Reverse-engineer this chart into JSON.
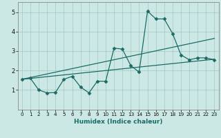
{
  "title": "",
  "xlabel": "Humidex (Indice chaleur)",
  "ylabel": "",
  "xlim": [
    -0.5,
    23.5
  ],
  "ylim": [
    0.0,
    5.5
  ],
  "xticks": [
    0,
    1,
    2,
    3,
    4,
    5,
    6,
    7,
    8,
    9,
    10,
    11,
    12,
    13,
    14,
    15,
    16,
    17,
    18,
    19,
    20,
    21,
    22,
    23
  ],
  "yticks": [
    1,
    2,
    3,
    4,
    5
  ],
  "bg_color": "#cce8e4",
  "grid_color": "#aaccca",
  "line_color": "#1a6b65",
  "line1_x": [
    0,
    1,
    2,
    3,
    4,
    5,
    6,
    7,
    8,
    9,
    10,
    11,
    12,
    13,
    14,
    15,
    16,
    17,
    18,
    19,
    20,
    21,
    22,
    23
  ],
  "line1_y": [
    1.55,
    1.6,
    1.0,
    0.85,
    0.87,
    1.55,
    1.7,
    1.15,
    0.85,
    1.45,
    1.45,
    3.15,
    3.1,
    2.25,
    1.92,
    5.05,
    4.65,
    4.65,
    3.9,
    2.8,
    2.55,
    2.65,
    2.65,
    2.55
  ],
  "trend1_x": [
    0,
    23
  ],
  "trend1_y": [
    1.55,
    2.58
  ],
  "trend2_x": [
    0,
    23
  ],
  "trend2_y": [
    1.55,
    3.65
  ],
  "marker": "D",
  "markersize": 2.5
}
